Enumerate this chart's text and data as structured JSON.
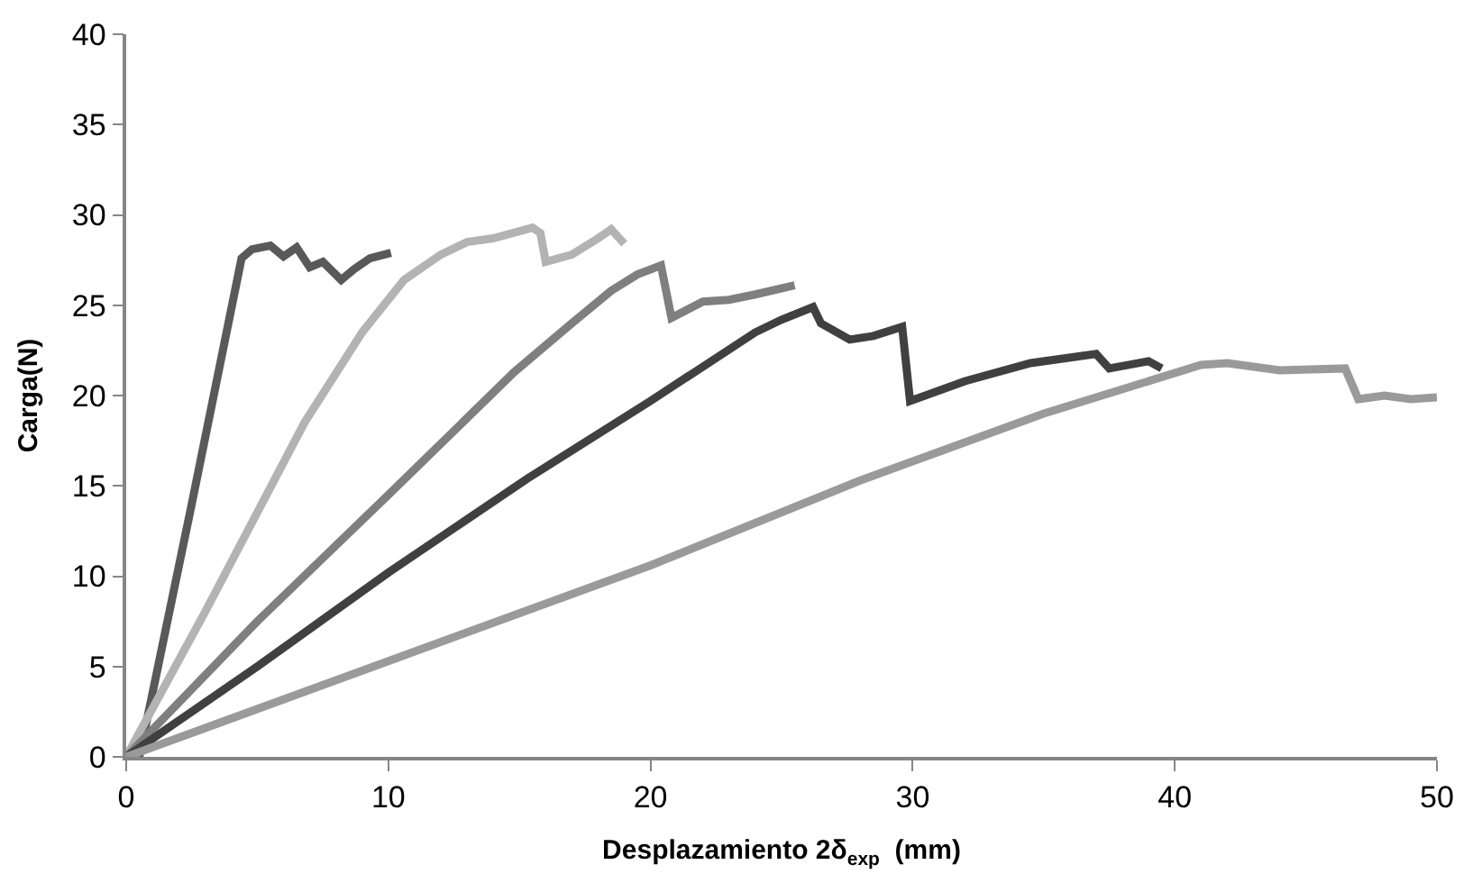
{
  "chart_data": {
    "type": "line",
    "xlabel": "Desplazamiento 2δ$_{exp}$  (mm)",
    "ylabel": "Carga(N)",
    "xlim": [
      0,
      50
    ],
    "ylim": [
      0,
      40
    ],
    "xticks": [
      0,
      10,
      20,
      30,
      40,
      50
    ],
    "yticks": [
      0,
      5,
      10,
      15,
      20,
      25,
      30,
      35,
      40
    ],
    "marker": "none",
    "line_style": "solid",
    "series": [
      {
        "color": "#595959",
        "x": [
          0.5,
          2.5,
          4.4,
          4.8,
          5.5,
          6,
          6.5,
          7,
          7.5,
          8.2,
          8.7,
          9.3,
          10.1
        ],
        "values": [
          0,
          14,
          27.6,
          28.1,
          28.3,
          27.7,
          28.2,
          27.1,
          27.4,
          26.4,
          27,
          27.6,
          27.9
        ]
      },
      {
        "color": "#b3b3b3",
        "x": [
          0,
          3,
          6.8,
          9,
          10.6,
          12,
          13,
          14,
          15,
          15.5,
          15.8,
          16,
          17,
          18,
          18.5,
          19
        ],
        "values": [
          0,
          8,
          18.5,
          23.5,
          26.4,
          27.8,
          28.5,
          28.7,
          29.1,
          29.3,
          29,
          27.4,
          27.8,
          28.7,
          29.2,
          28.4
        ]
      },
      {
        "color": "#7f7f7f",
        "x": [
          0,
          5,
          10,
          14.8,
          17,
          18.5,
          19.5,
          20.4,
          20.8,
          22,
          23,
          24,
          25.5
        ],
        "values": [
          0,
          7.5,
          14.5,
          21.3,
          24,
          25.8,
          26.7,
          27.2,
          24.3,
          25.2,
          25.3,
          25.6,
          26.1
        ]
      },
      {
        "color": "#404040",
        "x": [
          0,
          5,
          10,
          15.3,
          20,
          24,
          25,
          26.2,
          26.5,
          27.6,
          28.5,
          29.6,
          29.9,
          32,
          34.5,
          37,
          37.5,
          39,
          39.5
        ],
        "values": [
          0,
          5,
          10.2,
          15.4,
          19.7,
          23.5,
          24.2,
          24.9,
          24,
          23.1,
          23.3,
          23.8,
          19.7,
          20.8,
          21.8,
          22.3,
          21.5,
          21.9,
          21.5
        ]
      },
      {
        "color": "#9a9a9a",
        "x": [
          0,
          10,
          20,
          28,
          35,
          41,
          42,
          44,
          46.5,
          47,
          48,
          49,
          50
        ],
        "values": [
          0,
          5.3,
          10.6,
          15.3,
          19,
          21.7,
          21.8,
          21.4,
          21.5,
          19.8,
          20,
          19.8,
          19.9
        ]
      }
    ]
  }
}
